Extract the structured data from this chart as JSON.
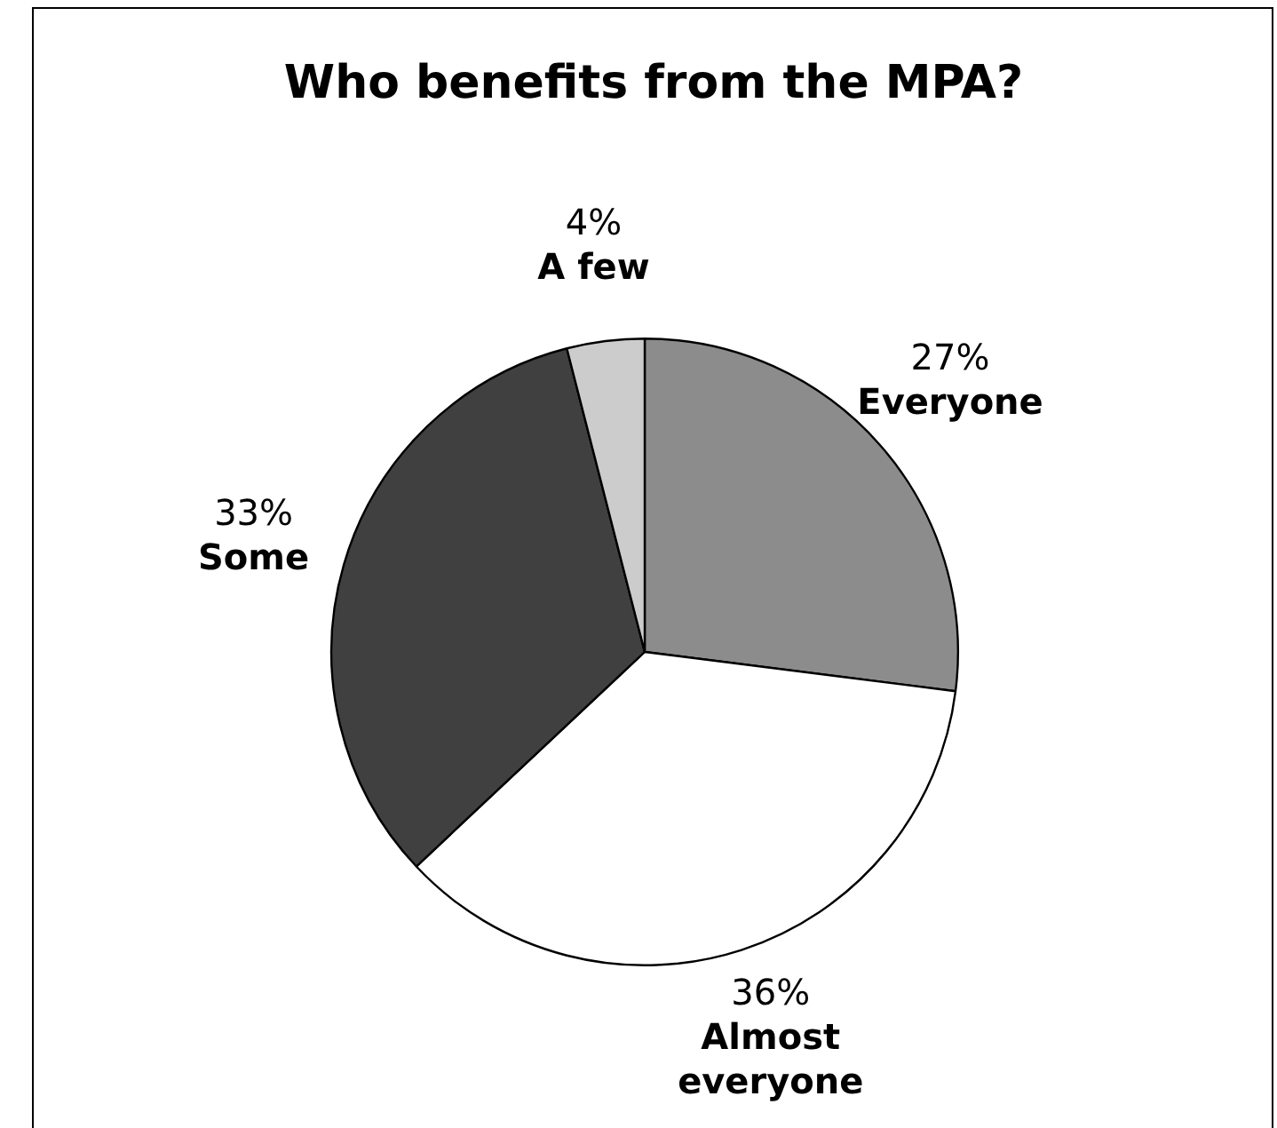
{
  "chart_data": {
    "type": "pie",
    "title": "Who benefits from the MPA?",
    "categories": [
      "Everyone",
      "Almost everyone",
      "Some",
      "A few"
    ],
    "values": [
      27,
      36,
      33,
      4
    ],
    "value_labels": [
      "27%",
      "36%",
      "33%",
      "4%"
    ],
    "colors": [
      "#8c8c8c",
      "#ffffff",
      "#404040",
      "#cccccc"
    ],
    "legend": false
  }
}
